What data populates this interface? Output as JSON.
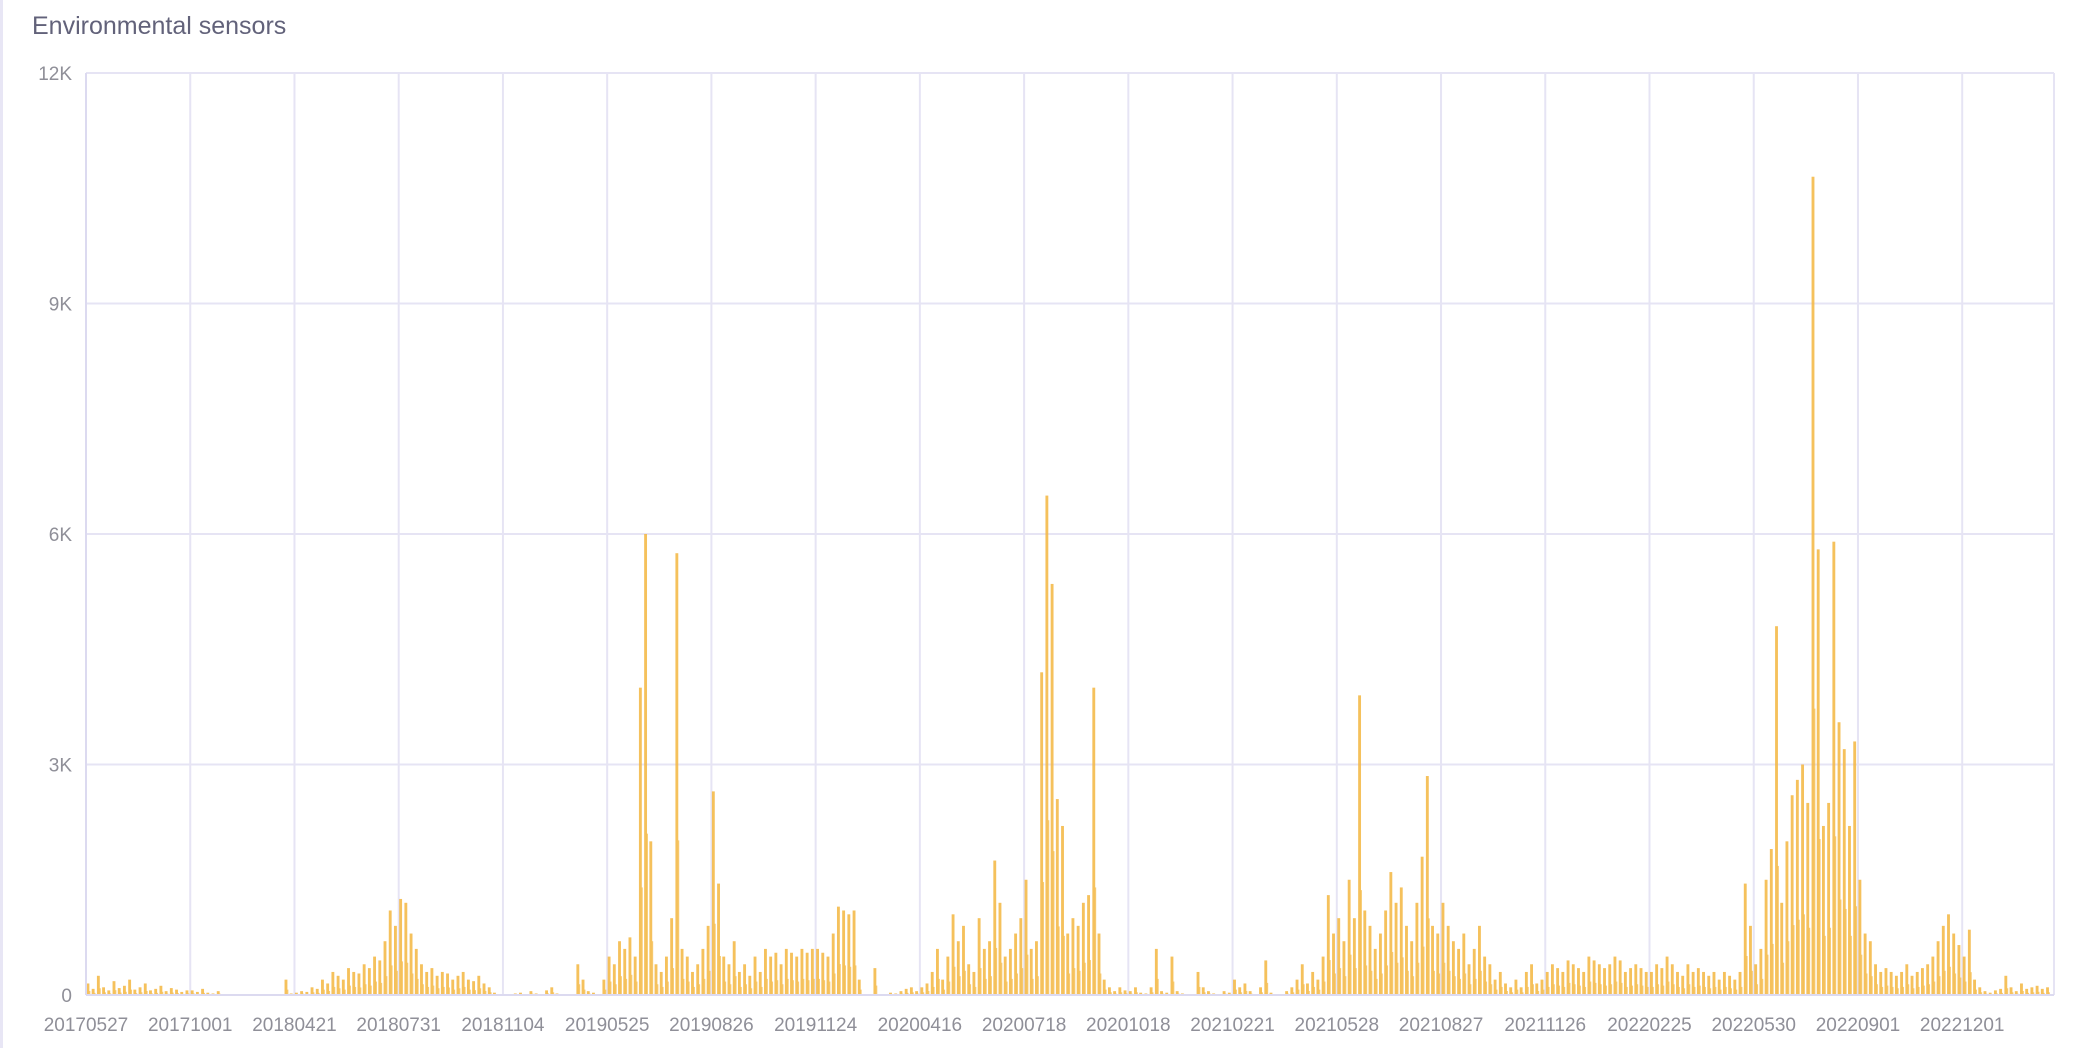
{
  "title": "Environmental sensors",
  "chart_data": {
    "type": "bar",
    "title": "Environmental sensors",
    "xlabel": "",
    "ylabel": "",
    "ylim": [
      0,
      12000
    ],
    "y_ticks": [
      0,
      3000,
      6000,
      9000,
      12000
    ],
    "y_tick_labels": [
      "0",
      "3K",
      "6K",
      "9K",
      "12K"
    ],
    "x_tick_labels": [
      "20170527",
      "20171001",
      "20180421",
      "20180731",
      "20181104",
      "20190525",
      "20190826",
      "20191124",
      "20200416",
      "20200718",
      "20201018",
      "20210221",
      "20210528",
      "20210827",
      "20211126",
      "20220225",
      "20220530",
      "20220901",
      "20221201"
    ],
    "grid": true,
    "legend": "none",
    "bar_color": "#f3b63f",
    "grid_color": "#e6e4f4",
    "values_note_per_tick": 20,
    "values": [
      150,
      80,
      250,
      100,
      60,
      180,
      90,
      120,
      200,
      70,
      100,
      150,
      60,
      80,
      120,
      50,
      90,
      70,
      40,
      60,
      60,
      40,
      80,
      30,
      20,
      50,
      10,
      0,
      0,
      0,
      0,
      0,
      0,
      0,
      0,
      0,
      0,
      0,
      200,
      20,
      30,
      50,
      40,
      100,
      80,
      200,
      150,
      300,
      250,
      200,
      350,
      300,
      280,
      400,
      350,
      500,
      450,
      700,
      1100,
      900,
      1250,
      1200,
      800,
      600,
      400,
      300,
      350,
      250,
      300,
      280,
      200,
      250,
      300,
      200,
      180,
      250,
      150,
      100,
      30,
      0,
      0,
      10,
      20,
      30,
      0,
      50,
      20,
      10,
      60,
      100,
      20,
      10,
      0,
      0,
      400,
      200,
      50,
      30,
      0,
      200,
      500,
      400,
      700,
      600,
      750,
      500,
      4000,
      6000,
      2000,
      400,
      300,
      500,
      1000,
      5750,
      600,
      500,
      300,
      400,
      600,
      900,
      2650,
      1450,
      500,
      400,
      700,
      300,
      400,
      250,
      500,
      300,
      600,
      500,
      550,
      400,
      600,
      550,
      500,
      600,
      550,
      600,
      600,
      550,
      500,
      800,
      1150,
      1100,
      1050,
      1100,
      200,
      0,
      0,
      350,
      0,
      0,
      30,
      20,
      50,
      80,
      100,
      50,
      100,
      150,
      300,
      600,
      200,
      500,
      1050,
      700,
      900,
      400,
      300,
      1000,
      600,
      700,
      1750,
      1200,
      500,
      600,
      800,
      1000,
      1500,
      600,
      700,
      4200,
      6500,
      5350,
      2550,
      2200,
      800,
      1000,
      900,
      1200,
      1300,
      4000,
      800,
      200,
      100,
      50,
      100,
      60,
      50,
      100,
      30,
      20,
      100,
      600,
      50,
      30,
      500,
      50,
      20,
      10,
      0,
      300,
      100,
      50,
      20,
      0,
      50,
      30,
      200,
      100,
      150,
      50,
      0,
      100,
      450,
      30,
      0,
      0,
      50,
      100,
      200,
      400,
      150,
      300,
      200,
      500,
      1300,
      800,
      1000,
      700,
      1500,
      1000,
      3900,
      1100,
      900,
      600,
      800,
      1100,
      1600,
      1200,
      1400,
      900,
      700,
      1200,
      1800,
      2850,
      900,
      800,
      1200,
      900,
      700,
      600,
      800,
      400,
      600,
      900,
      500,
      400,
      200,
      300,
      150,
      100,
      200,
      100,
      300,
      400,
      150,
      200,
      300,
      400,
      350,
      300,
      450,
      400,
      350,
      300,
      500,
      450,
      400,
      350,
      400,
      500,
      450,
      300,
      350,
      400,
      350,
      300,
      300,
      400,
      350,
      500,
      400,
      300,
      250,
      400,
      300,
      350,
      300,
      250,
      300,
      200,
      300,
      250,
      200,
      300,
      1450,
      900,
      400,
      600,
      1500,
      1900,
      4800,
      1200,
      2000,
      2600,
      2800,
      3000,
      2500,
      10650,
      5800,
      2200,
      2500,
      5900,
      3550,
      3200,
      2200,
      3300,
      1500,
      800,
      700,
      400,
      300,
      350,
      300,
      250,
      300,
      400,
      250,
      300,
      350,
      400,
      500,
      700,
      900,
      1050,
      800,
      650,
      500,
      850,
      200,
      100,
      50,
      30,
      60,
      80,
      250,
      100,
      50,
      150,
      80,
      100,
      120,
      80,
      100
    ]
  }
}
